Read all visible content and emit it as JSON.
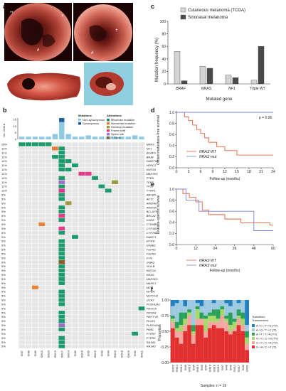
{
  "panels": {
    "a": "a",
    "b": "b",
    "c": "c",
    "d": "d",
    "e": "e",
    "f": "f"
  },
  "panel_a": {
    "photo_marks": [
      "**",
      "+",
      "#",
      "+",
      "#"
    ]
  },
  "panel_b": {
    "y_label": "No. of mut.",
    "y_ticks": [
      "15",
      "10",
      "5",
      "0"
    ],
    "legend_mutations_title": "Mutations",
    "legend_mutations": [
      {
        "label": "Non-synonymous",
        "color": "#8ec9e6"
      },
      {
        "label": "Synonymous",
        "color": "#1f5f99"
      }
    ],
    "legend_alterations_title": "Alterations",
    "legend_alterations": [
      {
        "label": "Missense mutation",
        "color": "#1c9a6c"
      },
      {
        "label": "Nonsense mutation",
        "color": "#e8823a"
      },
      {
        "label": "Nonstop mutation",
        "color": "#9a9a3a"
      },
      {
        "label": "Frame shift",
        "color": "#e23a8a"
      },
      {
        "label": "Splice site",
        "color": "#9b6fc7"
      },
      {
        "label": "5' Flank",
        "color": "#8a5a2a"
      }
    ],
    "samples": [
      "SM7",
      "SM8",
      "SM9",
      "SM12",
      "SM20",
      "SM13",
      "SM17",
      "SM14",
      "SM6",
      "SM16",
      "SM5",
      "SM15",
      "SM3",
      "SM4",
      "SM10",
      "SM18",
      "SM19",
      "SM2",
      "SM11"
    ],
    "genes": [
      {
        "pct": "26%",
        "name": "NRAS"
      },
      {
        "pct": "11%",
        "name": "NF1"
      },
      {
        "pct": "11%",
        "name": "AKAP9"
      },
      {
        "pct": "11%",
        "name": "BRAF"
      },
      {
        "pct": "11%",
        "name": "DNMT3B"
      },
      {
        "pct": "11%",
        "name": "HERC2"
      },
      {
        "pct": "11%",
        "name": "KMT2D"
      },
      {
        "pct": "11%",
        "name": "MAP3K5"
      },
      {
        "pct": "11%",
        "name": "PTEN"
      },
      {
        "pct": "11%",
        "name": "TERT"
      },
      {
        "pct": "11%",
        "name": "TP53"
      },
      {
        "pct": "11%",
        "name": "TYRP1"
      },
      {
        "pct": "5%",
        "name": "ABCB5"
      },
      {
        "pct": "5%",
        "name": "AKT2"
      },
      {
        "pct": "5%",
        "name": "ARID4B"
      },
      {
        "pct": "5%",
        "name": "ARID5A"
      },
      {
        "pct": "5%",
        "name": "BCLAF1"
      },
      {
        "pct": "5%",
        "name": "BRCA1"
      },
      {
        "pct": "5%",
        "name": "CHD8"
      },
      {
        "pct": "5%",
        "name": "CTNNB1"
      },
      {
        "pct": "5%",
        "name": "CYP1B1"
      },
      {
        "pct": "5%",
        "name": "CYP7B1"
      },
      {
        "pct": "5%",
        "name": "DNMT1"
      },
      {
        "pct": "5%",
        "name": "EP300"
      },
      {
        "pct": "5%",
        "name": "ERBB2"
      },
      {
        "pct": "5%",
        "name": "FGFR2"
      },
      {
        "pct": "5%",
        "name": "FGFR4"
      },
      {
        "pct": "5%",
        "name": "FYN"
      },
      {
        "pct": "5%",
        "name": "GNAQ"
      },
      {
        "pct": "5%",
        "name": "HLA-B"
      },
      {
        "pct": "5%",
        "name": "KMT2A"
      },
      {
        "pct": "5%",
        "name": "KRAS"
      },
      {
        "pct": "5%",
        "name": "MAP3K9"
      },
      {
        "pct": "5%",
        "name": "MAPK1"
      },
      {
        "pct": "5%",
        "name": "MET"
      },
      {
        "pct": "5%",
        "name": "MYCN"
      },
      {
        "pct": "5%",
        "name": "NOTCH2"
      },
      {
        "pct": "5%",
        "name": "OCA2"
      },
      {
        "pct": "5%",
        "name": "PCDHGA1"
      },
      {
        "pct": "5%",
        "name": "PIK3CA"
      },
      {
        "pct": "5%",
        "name": "PIK3R4"
      },
      {
        "pct": "5%",
        "name": "PIKFYVE"
      },
      {
        "pct": "5%",
        "name": "PLCE1"
      },
      {
        "pct": "5%",
        "name": "PLEKHG4"
      },
      {
        "pct": "5%",
        "name": "PMEL"
      },
      {
        "pct": "5%",
        "name": "PTPRF"
      },
      {
        "pct": "5%",
        "name": "PTPRK"
      },
      {
        "pct": "5%",
        "name": "RASA1"
      },
      {
        "pct": "5%",
        "name": "RASA2"
      }
    ]
  },
  "panel_c": {
    "legend": [
      "Cutaneous melanoma (TCGA)",
      "Sinonasal melanoma"
    ],
    "colors": [
      "#d4d4d4",
      "#4a4a4a"
    ],
    "ylabel": "Mutation frequency (%)",
    "xlabel": "Mutated gene",
    "y_ticks": [
      "0",
      "20",
      "40",
      "60",
      "80",
      "100"
    ]
  },
  "panel_d": {
    "ylabel": "Distant metastasis-free survival",
    "xlabel": "Follow-up (months)",
    "pvalue": "p = 0.06",
    "legend": [
      "NRAS WT",
      "NRAS mut"
    ],
    "colors": [
      "#e8613a",
      "#7a82d8"
    ],
    "x_ticks": [
      "0",
      "3",
      "6",
      "9",
      "12",
      "15",
      "18",
      "21",
      "24"
    ],
    "y_ticks": [
      "0.0",
      "0.2",
      "0.4",
      "0.6",
      "0.8",
      "1.0"
    ]
  },
  "panel_e": {
    "ylabel": "Disease-specific survival",
    "xlabel": "Follow-up (months)",
    "legend": [
      "NRAS WT",
      "NRAS mut"
    ],
    "colors": [
      "#e8613a",
      "#7a82d8"
    ],
    "x_ticks": [
      "0",
      "12",
      "24",
      "36",
      "48",
      "60"
    ],
    "y_ticks": [
      "0.0",
      "0.2",
      "0.4",
      "0.6",
      "0.8",
      "1.0"
    ]
  },
  "panel_f": {
    "ylabel": "Proportion",
    "xlabel": "Samples: n = 19",
    "y_ticks": [
      "0.00",
      "0.25",
      "0.50",
      "0.75",
      "1.00"
    ],
    "legend_title": "Transition/\nTransversion",
    "legend": [
      {
        "label": "A->C / T->G (TV)",
        "color": "#1f7fbf"
      },
      {
        "label": "A->G / T->C (Ti)",
        "color": "#9ecae1"
      },
      {
        "label": "A->T / T->A (TV)",
        "color": "#2aa05a"
      },
      {
        "label": "G->T / C->G (TV)",
        "color": "#a6d96a"
      },
      {
        "label": "G->T / C->A (TV)",
        "color": "#f4a6a0"
      },
      {
        "label": "G->A / C->T (Ti)",
        "color": "#e03030"
      }
    ],
    "samples": [
      "SM20",
      "SM13",
      "SM14",
      "SM6",
      "SM16",
      "SM5",
      "SM15",
      "SM3",
      "SM4",
      "SM10",
      "SM18",
      "SM19",
      "SM7",
      "SM8",
      "SM9",
      "SM12",
      "SM17",
      "SM2",
      "SM11"
    ]
  },
  "chart_data": [
    {
      "type": "bar",
      "title": "",
      "categories": [
        "BRAF",
        "NRAS",
        "NF1",
        "Triple WT"
      ],
      "series": [
        {
          "name": "Cutaneous melanoma (TCGA)",
          "values": [
            52,
            28,
            14,
            6
          ]
        },
        {
          "name": "Sinonasal melanoma",
          "values": [
            5,
            25,
            10,
            60
          ]
        }
      ],
      "xlabel": "Mutated gene",
      "ylabel": "Mutation frequency (%)",
      "ylim": [
        0,
        100
      ]
    },
    {
      "type": "line",
      "title": "",
      "xlabel": "Follow-up (months)",
      "ylabel": "Distant metastasis-free survival",
      "xlim": [
        0,
        24
      ],
      "ylim": [
        0,
        1
      ],
      "series": [
        {
          "name": "NRAS WT",
          "x": [
            0,
            2,
            3,
            4,
            5,
            6,
            7,
            8,
            10,
            12,
            15,
            24
          ],
          "y": [
            1.0,
            0.92,
            0.85,
            0.77,
            0.69,
            0.62,
            0.54,
            0.46,
            0.38,
            0.31,
            0.23,
            0.23
          ]
        },
        {
          "name": "NRAS mut",
          "x": [
            0,
            3,
            24
          ],
          "y": [
            1.0,
            1.0,
            1.0
          ]
        }
      ],
      "annotation": "p = 0.06"
    },
    {
      "type": "line",
      "title": "",
      "xlabel": "Follow-up (months)",
      "ylabel": "Disease-specific survival",
      "xlim": [
        0,
        60
      ],
      "ylim": [
        0,
        1
      ],
      "series": [
        {
          "name": "NRAS WT",
          "x": [
            0,
            4,
            8,
            12,
            16,
            20,
            30,
            40,
            58,
            60
          ],
          "y": [
            1.0,
            0.92,
            0.85,
            0.77,
            0.62,
            0.54,
            0.46,
            0.39,
            0.35,
            0.35
          ]
        },
        {
          "name": "NRAS mut",
          "x": [
            0,
            6,
            14,
            24,
            40,
            48,
            60
          ],
          "y": [
            1.0,
            0.8,
            0.6,
            0.6,
            0.6,
            0.25,
            0.25
          ]
        }
      ]
    }
  ]
}
